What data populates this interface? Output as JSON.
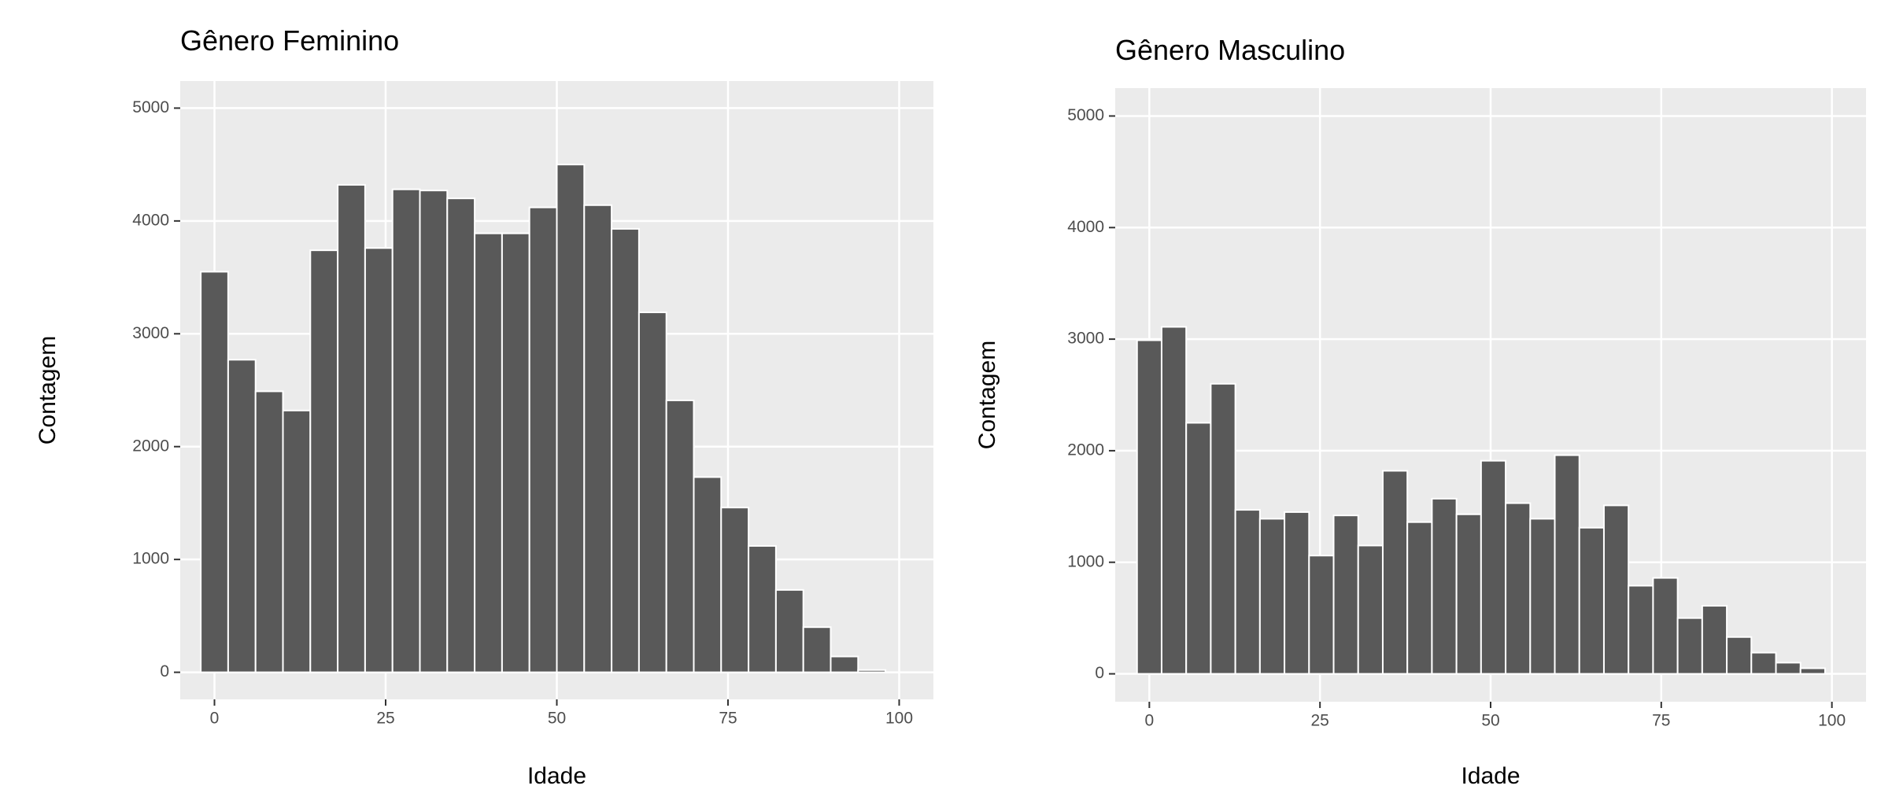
{
  "chart_data": [
    {
      "type": "histogram",
      "title": "Gênero Feminino",
      "x_label": "Idade",
      "y_label": "Contagem",
      "bins": [
        -2,
        2,
        6,
        10,
        14,
        18,
        22,
        26,
        30,
        34,
        38,
        42,
        46,
        50,
        54,
        58,
        62,
        66,
        70,
        74,
        78,
        82,
        86,
        90,
        94,
        98
      ],
      "values": [
        3550,
        2770,
        2490,
        2320,
        3740,
        4320,
        3760,
        4280,
        4270,
        4200,
        3890,
        3890,
        4120,
        4500,
        4140,
        3930,
        3190,
        2410,
        1730,
        1460,
        1120,
        730,
        400,
        140,
        20
      ],
      "color": "#595959",
      "xlim": [
        -5,
        105
      ],
      "ylim": [
        -240,
        5240
      ],
      "xticks": [
        0,
        25,
        50,
        75,
        100
      ],
      "yticks": [
        0,
        1000,
        2000,
        3000,
        4000,
        5000
      ],
      "grid": true
    },
    {
      "type": "histogram",
      "title": "Gênero Masculino",
      "x_label": "Idade",
      "y_label": "Contagem",
      "bins": [
        -1.8,
        1.8,
        5.4,
        9,
        12.6,
        16.2,
        19.8,
        23.4,
        27,
        30.6,
        34.2,
        37.8,
        41.4,
        45,
        48.6,
        52.2,
        55.8,
        59.4,
        63,
        66.6,
        70.2,
        73.8,
        77.4,
        81,
        84.6,
        88.2,
        91.8,
        95.4,
        99
      ],
      "values": [
        2990,
        3110,
        2250,
        2600,
        1470,
        1390,
        1450,
        1060,
        1420,
        1150,
        1820,
        1360,
        1570,
        1430,
        1910,
        1530,
        1390,
        1960,
        1310,
        1510,
        790,
        860,
        500,
        610,
        330,
        190,
        100,
        50
      ],
      "color": "#595959",
      "xlim": [
        -5,
        105
      ],
      "ylim": [
        -250,
        5250
      ],
      "xticks": [
        0,
        25,
        50,
        75,
        100
      ],
      "yticks": [
        0,
        1000,
        2000,
        3000,
        4000,
        5000
      ],
      "grid": true
    }
  ]
}
